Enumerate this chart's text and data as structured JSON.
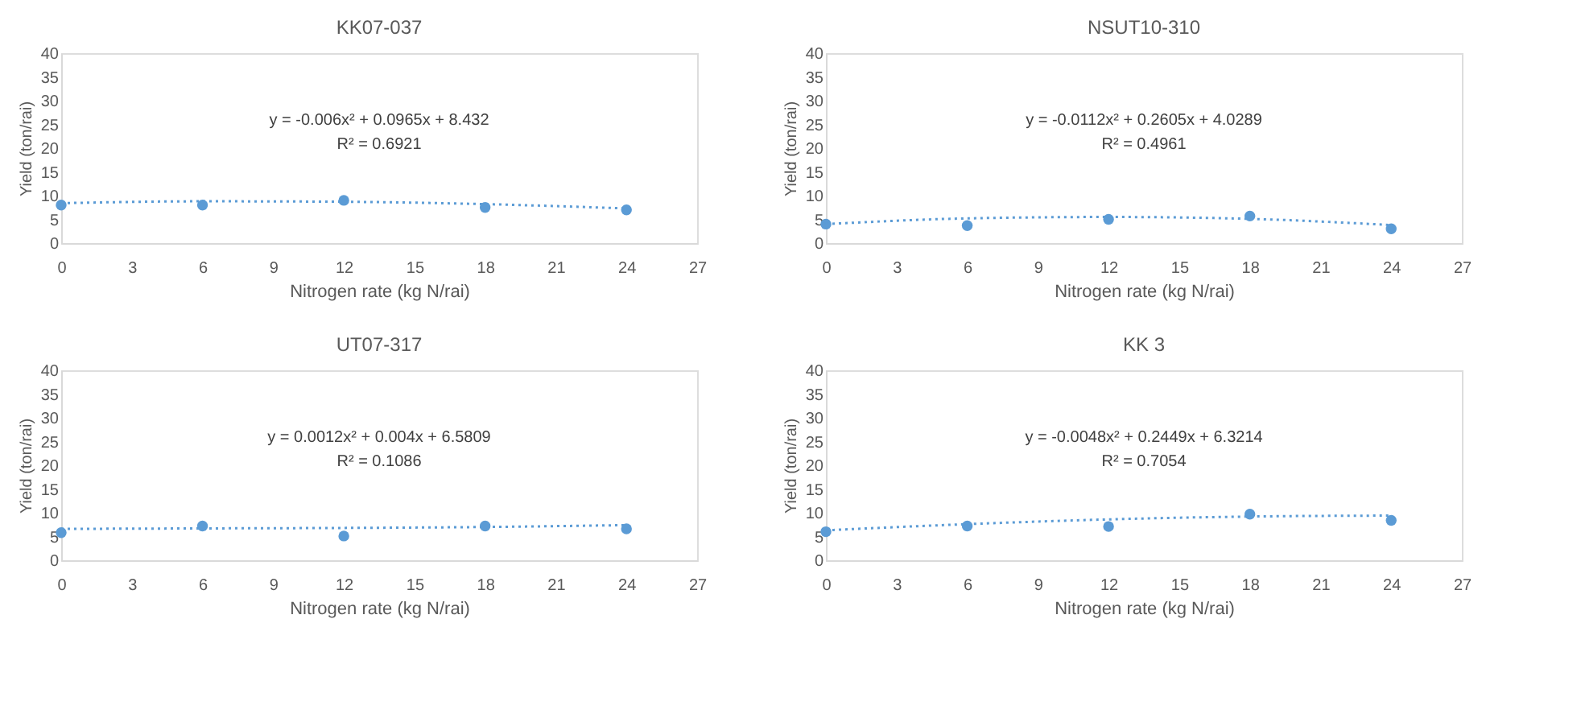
{
  "chart_data": [
    {
      "type": "scatter",
      "title": "KK07-037",
      "xlabel": "Nitrogen rate (kg N/rai)",
      "ylabel": "Yield (ton/rai)",
      "x": [
        0,
        6,
        12,
        18,
        24
      ],
      "marker": "circle",
      "grid": false,
      "series": [
        {
          "color": "#5b9bd5",
          "values": [
            8,
            8,
            9,
            7.5,
            7
          ]
        },
        {
          "type": "line",
          "color": "#5b9bd5",
          "line_style": "dotted",
          "marker": "none",
          "x": [
            0,
            6,
            12,
            18,
            24
          ],
          "values": [
            8.4,
            8.8,
            8.7,
            8.2,
            7.3
          ]
        }
      ],
      "xlim": [
        0,
        27
      ],
      "xticks": [
        0,
        3,
        6,
        9,
        12,
        15,
        18,
        21,
        24,
        27
      ],
      "ylim": [
        0,
        40
      ],
      "yticks": [
        0,
        5,
        10,
        15,
        20,
        25,
        30,
        35,
        40
      ],
      "annotations": [
        "y = -0.006x² + 0.0965x + 8.432",
        "R² = 0.6921"
      ]
    },
    {
      "type": "scatter",
      "title": "NSUT10-310",
      "xlabel": "Nitrogen rate (kg N/rai)",
      "ylabel": "Yield (ton/rai)",
      "x": [
        0,
        6,
        12,
        18,
        24
      ],
      "marker": "circle",
      "grid": false,
      "series": [
        {
          "color": "#5b9bd5",
          "values": [
            4,
            3.7,
            5,
            5.7,
            3
          ]
        },
        {
          "type": "line",
          "color": "#5b9bd5",
          "line_style": "dotted",
          "marker": "none",
          "x": [
            0,
            6,
            12,
            18,
            24
          ],
          "values": [
            4.0,
            5.2,
            5.5,
            5.1,
            3.8
          ]
        }
      ],
      "xlim": [
        0,
        27
      ],
      "xticks": [
        0,
        3,
        6,
        9,
        12,
        15,
        18,
        21,
        24,
        27
      ],
      "ylim": [
        0,
        40
      ],
      "yticks": [
        0,
        5,
        10,
        15,
        20,
        25,
        30,
        35,
        40
      ],
      "annotations": [
        "y = -0.0112x² + 0.2605x + 4.0289",
        "R² = 0.4961"
      ]
    },
    {
      "type": "scatter",
      "title": "UT07-317",
      "xlabel": "Nitrogen rate (kg N/rai)",
      "ylabel": "Yield (ton/rai)",
      "x": [
        0,
        6,
        12,
        18,
        24
      ],
      "marker": "circle",
      "grid": false,
      "series": [
        {
          "color": "#5b9bd5",
          "values": [
            5.8,
            7.2,
            5.1,
            7.2,
            6.6
          ]
        },
        {
          "type": "line",
          "color": "#5b9bd5",
          "line_style": "dotted",
          "marker": "none",
          "x": [
            0,
            6,
            12,
            18,
            24
          ],
          "values": [
            6.6,
            6.7,
            6.8,
            7.0,
            7.4
          ]
        }
      ],
      "xlim": [
        0,
        27
      ],
      "xticks": [
        0,
        3,
        6,
        9,
        12,
        15,
        18,
        21,
        24,
        27
      ],
      "ylim": [
        0,
        40
      ],
      "yticks": [
        0,
        5,
        10,
        15,
        20,
        25,
        30,
        35,
        40
      ],
      "annotations": [
        "y = 0.0012x² + 0.004x + 6.5809",
        "R² = 0.1086"
      ]
    },
    {
      "type": "scatter",
      "title": "KK 3",
      "xlabel": "Nitrogen rate (kg N/rai)",
      "ylabel": "Yield (ton/rai)",
      "x": [
        0,
        6,
        12,
        18,
        24
      ],
      "marker": "circle",
      "grid": false,
      "series": [
        {
          "color": "#5b9bd5",
          "values": [
            6,
            7.2,
            7.1,
            9.7,
            8.4
          ]
        },
        {
          "type": "line",
          "color": "#5b9bd5",
          "line_style": "dotted",
          "marker": "none",
          "x": [
            0,
            6,
            12,
            18,
            24
          ],
          "values": [
            6.3,
            7.6,
            8.6,
            9.2,
            9.4
          ]
        }
      ],
      "xlim": [
        0,
        27
      ],
      "xticks": [
        0,
        3,
        6,
        9,
        12,
        15,
        18,
        21,
        24,
        27
      ],
      "ylim": [
        0,
        40
      ],
      "yticks": [
        0,
        5,
        10,
        15,
        20,
        25,
        30,
        35,
        40
      ],
      "annotations": [
        "y = -0.0048x² + 0.2449x + 6.3214",
        "R² = 0.7054"
      ]
    }
  ]
}
